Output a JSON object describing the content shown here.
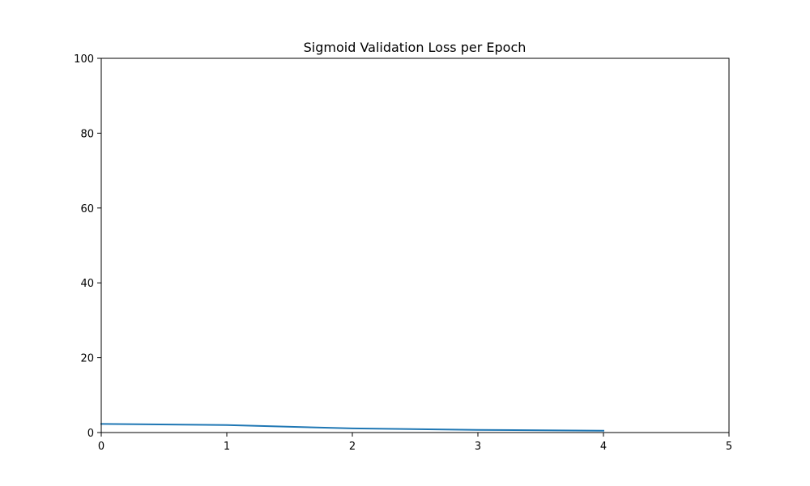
{
  "chart_data": {
    "type": "line",
    "title": "Sigmoid Validation Loss per Epoch",
    "xlabel": "",
    "ylabel": "",
    "xlim": [
      0,
      5
    ],
    "ylim": [
      0,
      100
    ],
    "xticks": [
      0,
      1,
      2,
      3,
      4,
      5
    ],
    "yticks": [
      0,
      20,
      40,
      60,
      80,
      100
    ],
    "grid": false,
    "series": [
      {
        "color": "#1f77b4",
        "x": [
          0,
          1,
          2,
          3,
          4
        ],
        "y": [
          2.3,
          2.0,
          1.1,
          0.7,
          0.5
        ]
      }
    ]
  }
}
